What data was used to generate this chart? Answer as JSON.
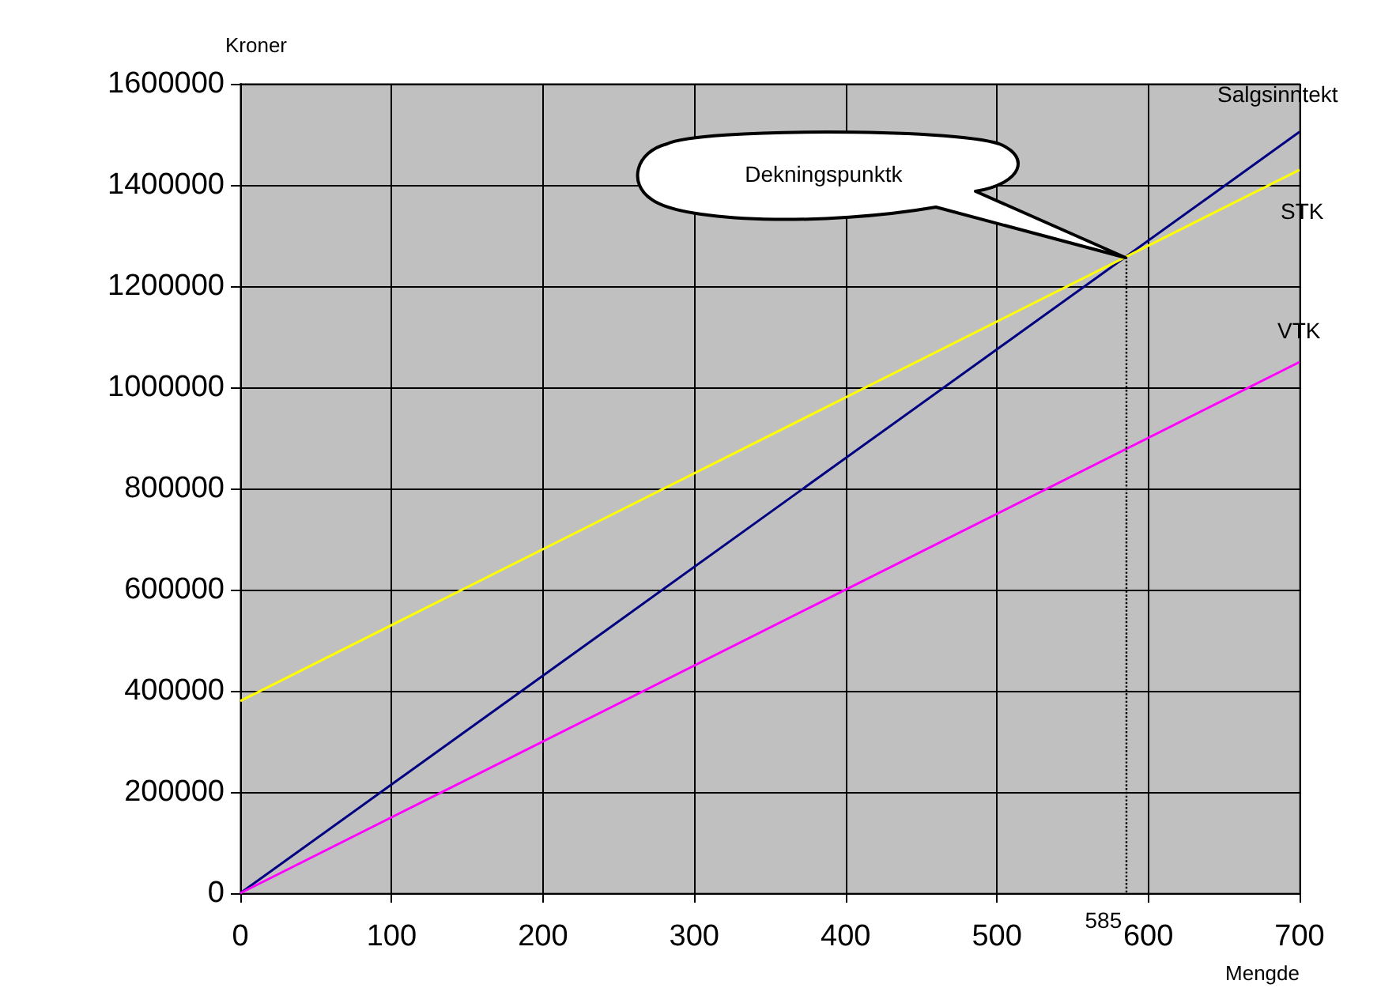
{
  "chart_data": {
    "type": "line",
    "xlabel": "Mengde",
    "ylabel": "Kroner",
    "x": [
      0,
      700
    ],
    "series": [
      {
        "name": "Salgsinntekt",
        "color": "#000080",
        "values": [
          0,
          1505000
        ]
      },
      {
        "name": "STK",
        "color": "#ffff00",
        "values": [
          380000,
          1430000
        ]
      },
      {
        "name": "VTK",
        "color": "#ff00ff",
        "values": [
          0,
          1050000
        ]
      }
    ],
    "xlim": [
      0,
      700
    ],
    "xticks": [
      0,
      100,
      200,
      300,
      400,
      500,
      600,
      700
    ],
    "ylim": [
      0,
      1600000
    ],
    "yticks": [
      0,
      200000,
      400000,
      600000,
      800000,
      1000000,
      1200000,
      1400000,
      1600000
    ],
    "grid": true,
    "legend": false,
    "marker": "none",
    "line_style": "solid",
    "ref_lines": [
      {
        "axis": "x",
        "value": 585,
        "label": "585",
        "line_style": "dotted",
        "color": "#000000"
      }
    ],
    "annotations": [
      "Dekningspunktk"
    ]
  }
}
